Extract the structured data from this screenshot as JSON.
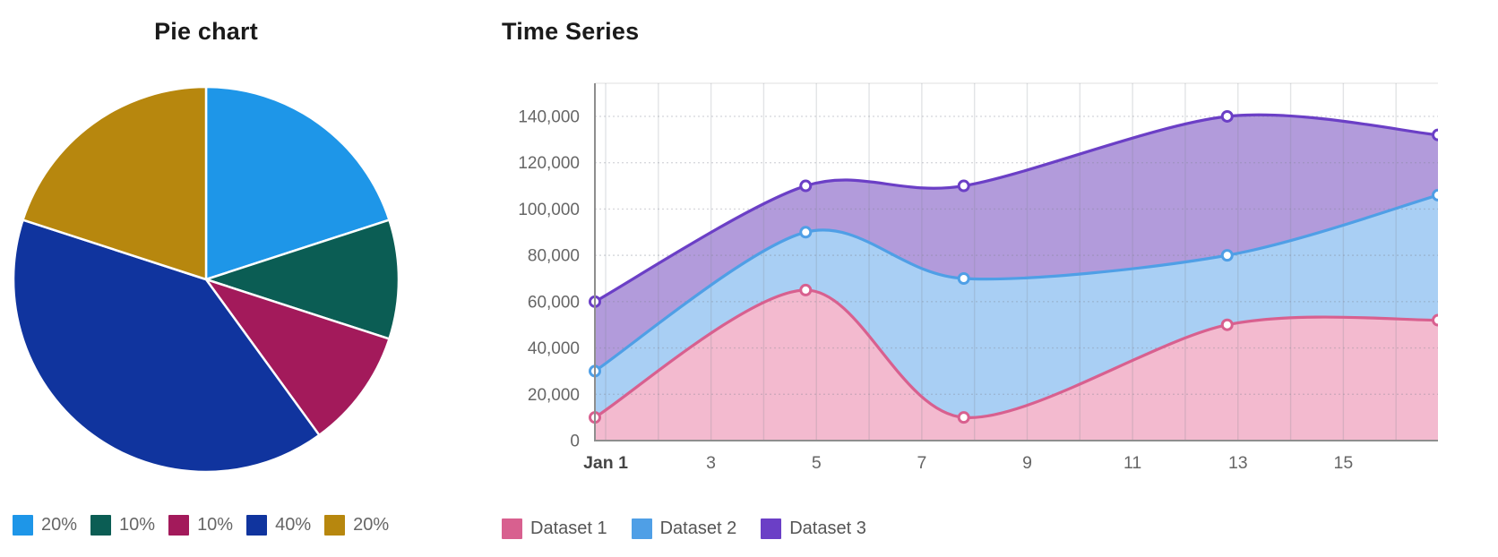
{
  "page": {
    "background": "#ffffff"
  },
  "chart_data": [
    {
      "type": "pie",
      "title": "Pie chart",
      "labels": [
        "20%",
        "10%",
        "10%",
        "40%",
        "20%"
      ],
      "values": [
        20,
        10,
        10,
        40,
        20
      ],
      "colors": [
        "#1E96E8",
        "#0B5D54",
        "#A31A5B",
        "#10349E",
        "#B7870E"
      ],
      "slice_border_color": "#ffffff",
      "start_angle_deg": 0,
      "direction": "clockwise",
      "legend_position": "bottom-left",
      "legend_text_color": "#666666"
    },
    {
      "type": "area",
      "title": "Time Series",
      "x": [
        1,
        5,
        8,
        13,
        17
      ],
      "x_unit": "day of January",
      "series": [
        {
          "name": "Dataset 1",
          "values": [
            10000,
            65000,
            10000,
            50000,
            52000
          ],
          "line_color": "#D8608F",
          "fill_color": "#F3BACF"
        },
        {
          "name": "Dataset 2",
          "values": [
            30000,
            90000,
            70000,
            80000,
            106000
          ],
          "line_color": "#4F9FE6",
          "fill_color": "#A9CFF4"
        },
        {
          "name": "Dataset 3",
          "values": [
            60000,
            110000,
            110000,
            140000,
            132000
          ],
          "line_color": "#6B3FC6",
          "fill_color": "#B29BDB"
        }
      ],
      "x_axis": {
        "range": [
          1,
          17
        ],
        "tick_days": [
          1,
          3,
          5,
          7,
          9,
          11,
          13,
          15
        ],
        "tick_labels": [
          "Jan 1",
          "3",
          "5",
          "7",
          "9",
          "11",
          "13",
          "15"
        ],
        "first_tick_bold": true
      },
      "y_axis": {
        "range": [
          0,
          154300
        ],
        "ticks": [
          0,
          20000,
          40000,
          60000,
          80000,
          100000,
          120000,
          140000
        ],
        "tick_labels": [
          "0",
          "20,000",
          "40,000",
          "60,000",
          "80,000",
          "100,000",
          "120,000",
          "140,000"
        ]
      },
      "curve": "smooth",
      "grid": true,
      "point_style": "circle",
      "point_fill": "#ffffff",
      "axis_color": "#8E8E8E",
      "grid_color_v": "rgba(125,130,142,0.22)",
      "grid_color_h": "rgba(125,130,142,0.30)",
      "top_border_color": "rgba(0,0,0,0.10)",
      "tick_text_color": "#666666",
      "bold_tick_color": "#454545",
      "legend_position": "bottom-left",
      "legend_text_color": "#555555"
    }
  ]
}
